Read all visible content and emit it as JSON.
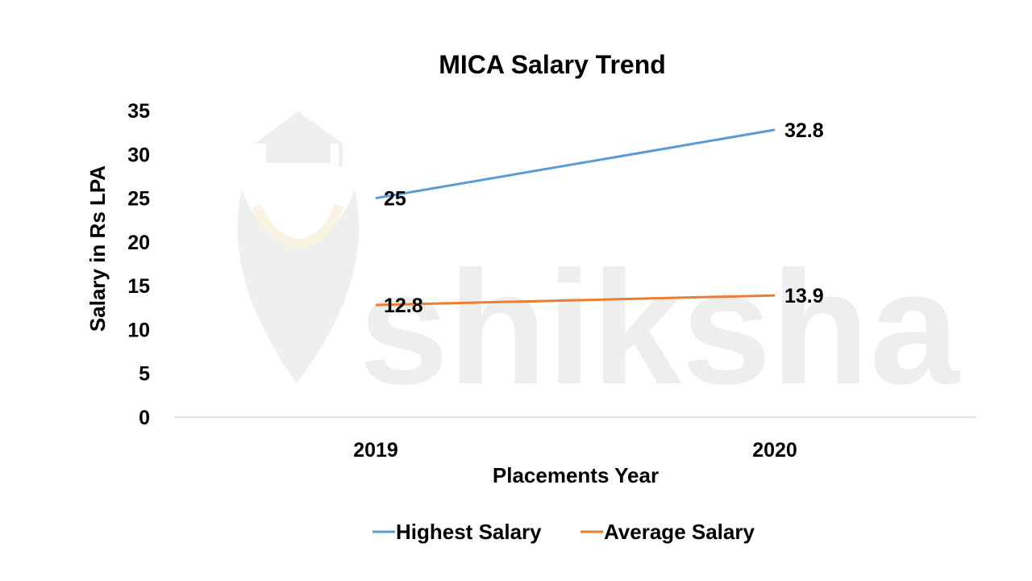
{
  "chart_data": {
    "type": "line",
    "title": "MICA Salary Trend",
    "xlabel": "Placements Year",
    "ylabel": "Salary in Rs LPA",
    "categories": [
      "2019",
      "2020"
    ],
    "ylim": [
      0,
      35
    ],
    "yticks": [
      0,
      5,
      10,
      15,
      20,
      25,
      30,
      35
    ],
    "grid": false,
    "legend_position": "bottom",
    "series": [
      {
        "name": "Highest Salary",
        "values": [
          25,
          32.8
        ],
        "color": "#5B9BD5"
      },
      {
        "name": "Average Salary",
        "values": [
          12.8,
          13.9
        ],
        "color": "#ED7D31"
      }
    ]
  },
  "watermark": {
    "text": "shiksha",
    "color": "#eeeeee"
  },
  "colors": {
    "axis_line": "#d9d9d9",
    "text": "#000000"
  }
}
